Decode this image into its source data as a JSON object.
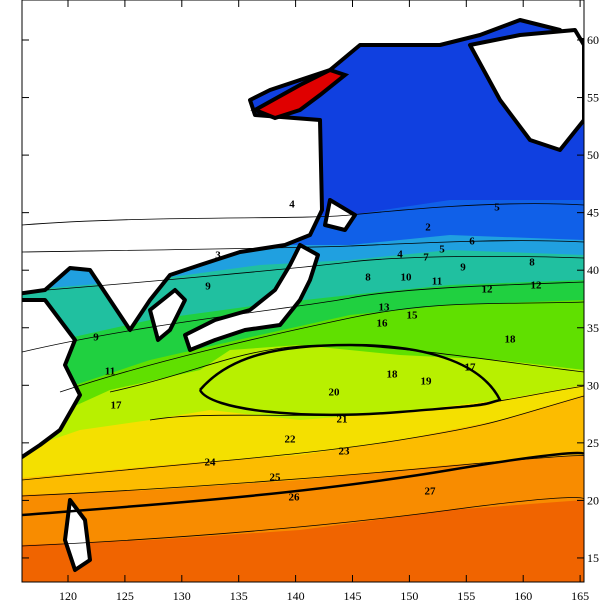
{
  "map": {
    "x_ticks": [
      120,
      125,
      130,
      135,
      140,
      145,
      150,
      155,
      160,
      165
    ],
    "y_ticks": [
      15,
      20,
      25,
      30,
      35,
      40,
      45,
      50,
      55,
      60
    ],
    "contour_labels": [
      4,
      2,
      5,
      3,
      6,
      9,
      9,
      4,
      5,
      7,
      8,
      10,
      11,
      9,
      8,
      12,
      12,
      13,
      16,
      15,
      18,
      11,
      17,
      18,
      19,
      17,
      20,
      21,
      22,
      23,
      24,
      25,
      26,
      27
    ]
  }
}
